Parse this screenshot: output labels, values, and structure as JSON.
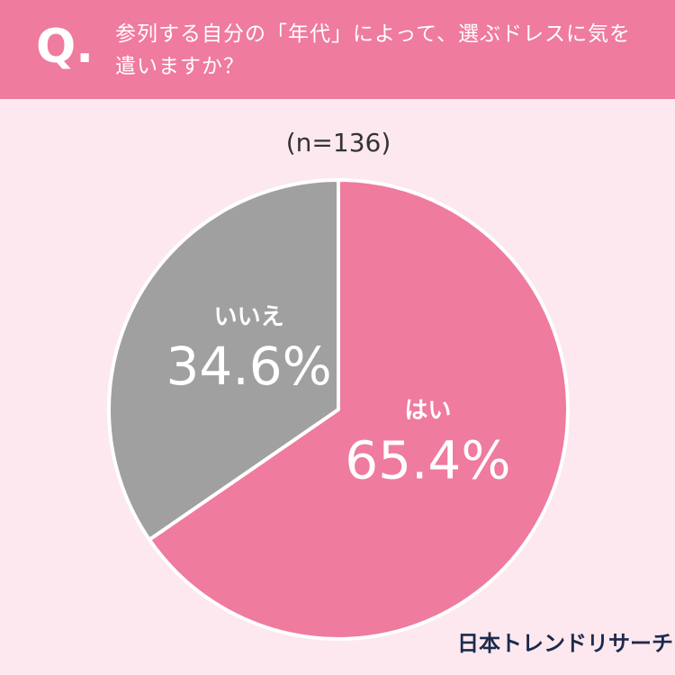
{
  "chart_data": {
    "type": "pie",
    "question_label": "Q.",
    "title": "参列する自分の「年代」によって、選ぶドレスに気を遣いますか？",
    "subtitle": "(n=136)",
    "categories": [
      "はい",
      "いいえ"
    ],
    "values": [
      65.4,
      34.6
    ],
    "value_labels": [
      "65.4%",
      "34.6%"
    ],
    "colors": [
      "#ef7b9e",
      "#a0a0a0"
    ],
    "source": "日本トレンドリサーチ"
  }
}
